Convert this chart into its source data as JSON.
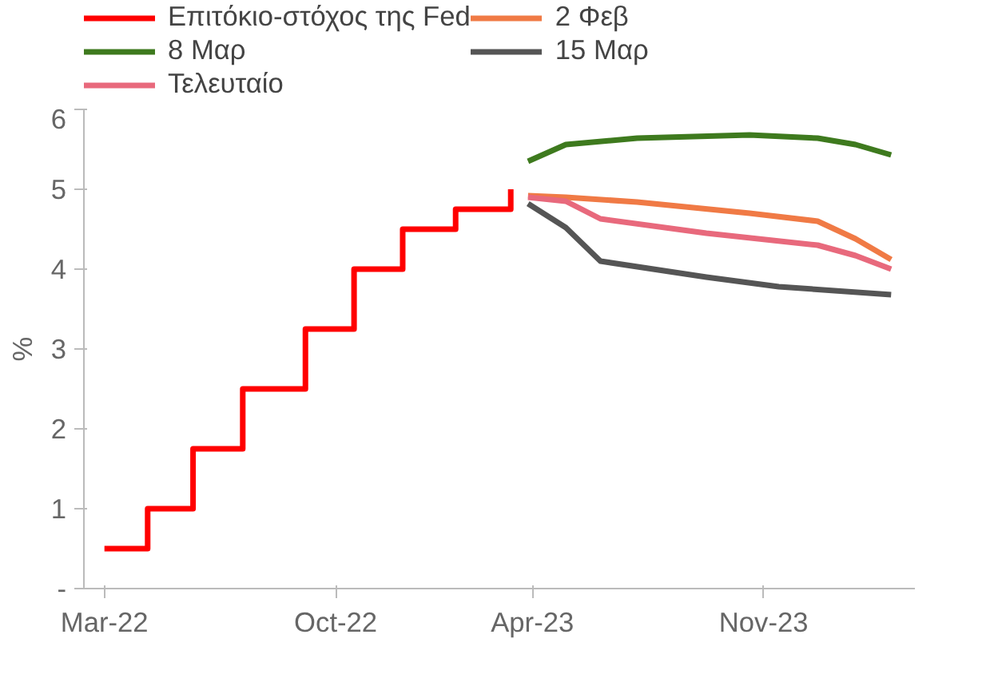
{
  "chart_data": {
    "type": "line",
    "ylabel": "%",
    "ylim": [
      0,
      6
    ],
    "yticks": [
      {
        "value": 0,
        "label": "-"
      },
      1,
      2,
      3,
      4,
      5,
      6
    ],
    "xlim": [
      "2022-02-10",
      "2024-03-20"
    ],
    "xticks": [
      {
        "value": "2022-03-01",
        "label": "Mar-22"
      },
      {
        "value": "2022-10-01",
        "label": "Oct-22"
      },
      {
        "value": "2023-04-01",
        "label": "Apr-23"
      },
      {
        "value": "2023-11-01",
        "label": "Nov-23"
      }
    ],
    "grid": false,
    "legend": "top",
    "line_style": "solid",
    "marker": "none",
    "series": [
      {
        "name": "Επιτόκιο-στόχος της Fed",
        "type": "step",
        "color": "#ff0000",
        "x": [
          "2022-03-01",
          "2022-04-10",
          "2022-05-22",
          "2022-07-07",
          "2022-09-03",
          "2022-10-18",
          "2022-12-02",
          "2023-01-20",
          "2023-03-12"
        ],
        "values": [
          0.5,
          1.0,
          1.75,
          2.5,
          3.25,
          4.0,
          4.5,
          4.75,
          5.0
        ]
      },
      {
        "name": "2 Φεβ",
        "color": "#f07a45",
        "x": [
          "2023-03-28",
          "2023-05-02",
          "2023-07-07",
          "2023-10-19",
          "2023-12-21",
          "2024-01-25",
          "2024-02-27"
        ],
        "values": [
          4.92,
          4.9,
          4.84,
          4.7,
          4.6,
          4.38,
          4.12
        ]
      },
      {
        "name": "8 Μαρ",
        "color": "#3e7a1e",
        "x": [
          "2023-03-28",
          "2023-05-02",
          "2023-07-07",
          "2023-10-19",
          "2023-12-21",
          "2024-01-25",
          "2024-02-27"
        ],
        "values": [
          5.35,
          5.56,
          5.64,
          5.68,
          5.64,
          5.56,
          5.43
        ]
      },
      {
        "name": "15 Μαρ",
        "color": "#555555",
        "x": [
          "2023-03-28",
          "2023-05-02",
          "2023-06-03",
          "2023-09-09",
          "2023-11-15",
          "2024-02-27"
        ],
        "values": [
          4.82,
          4.52,
          4.1,
          3.9,
          3.78,
          3.68
        ]
      },
      {
        "name": "Τελευταίο",
        "color": "#e8697c",
        "x": [
          "2023-03-28",
          "2023-05-02",
          "2023-06-03",
          "2023-09-09",
          "2023-12-21",
          "2024-01-25",
          "2024-02-27"
        ],
        "values": [
          4.9,
          4.85,
          4.63,
          4.45,
          4.3,
          4.17,
          4.0
        ]
      }
    ]
  }
}
